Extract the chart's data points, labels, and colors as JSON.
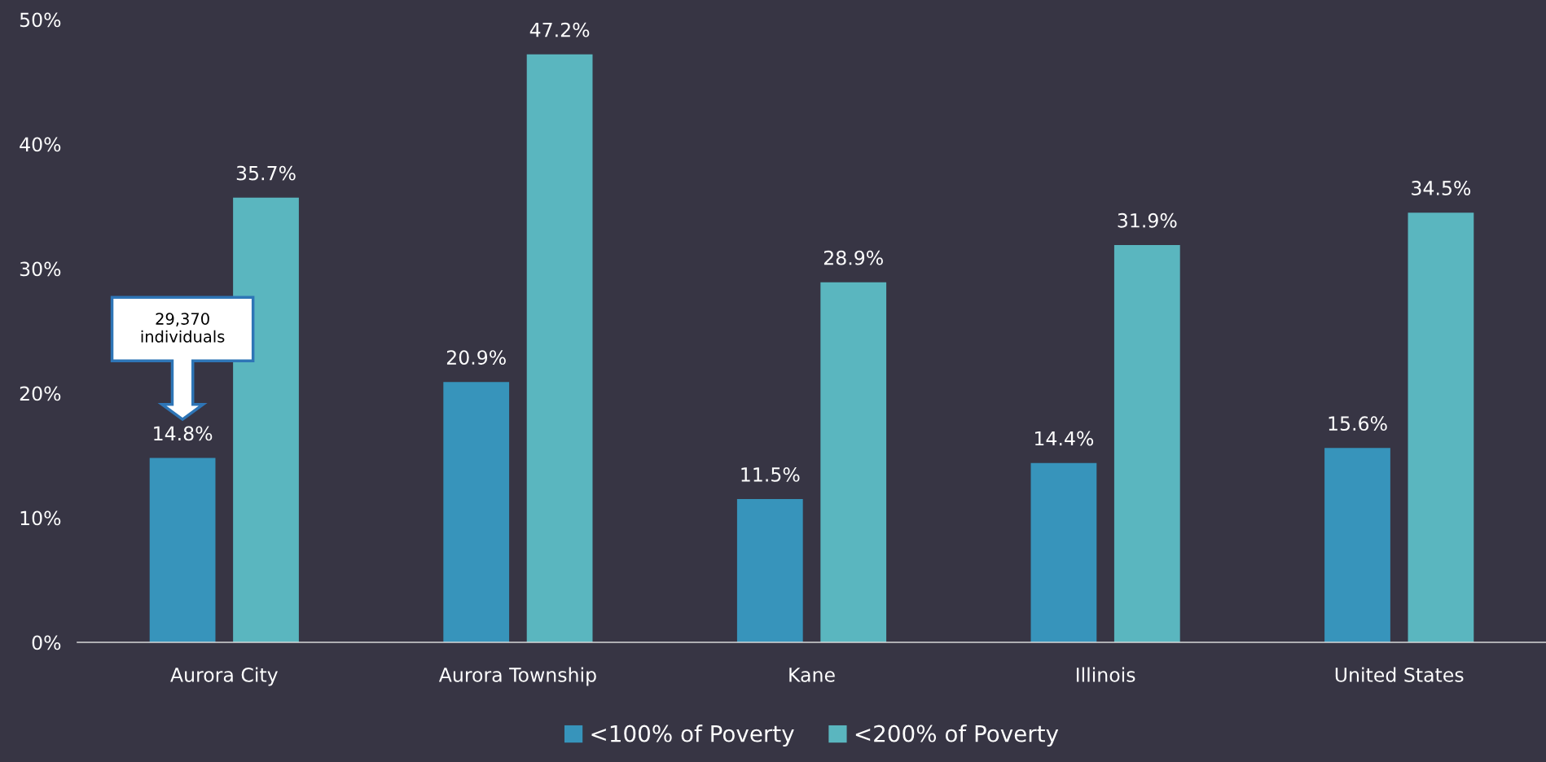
{
  "chart_data": {
    "type": "bar",
    "categories": [
      "Aurora City",
      "Aurora Township",
      "Kane",
      "Illinois",
      "United States"
    ],
    "series": [
      {
        "name": "<100% of Poverty",
        "color": "#3794bb",
        "values": [
          14.8,
          20.9,
          11.5,
          14.4,
          15.6
        ]
      },
      {
        "name": "<200% of Poverty",
        "color": "#5ab6bf",
        "values": [
          35.7,
          47.2,
          28.9,
          31.9,
          34.5
        ]
      }
    ],
    "ylim": [
      0,
      50
    ],
    "yticks": [
      {
        "value": 0,
        "label": "0%"
      },
      {
        "value": 10,
        "label": "10%"
      },
      {
        "value": 20,
        "label": "20%"
      },
      {
        "value": 30,
        "label": "30%"
      },
      {
        "value": 40,
        "label": "40%"
      },
      {
        "value": 50,
        "label": "50%"
      }
    ],
    "value_labels": [
      [
        "14.8%",
        "20.9%",
        "11.5%",
        "14.4%",
        "15.6%"
      ],
      [
        "35.7%",
        "47.2%",
        "28.9%",
        "31.9%",
        "34.5%"
      ]
    ],
    "annotations": [
      "29,370\nindividuals"
    ],
    "grid": false,
    "legend": "bottom"
  }
}
